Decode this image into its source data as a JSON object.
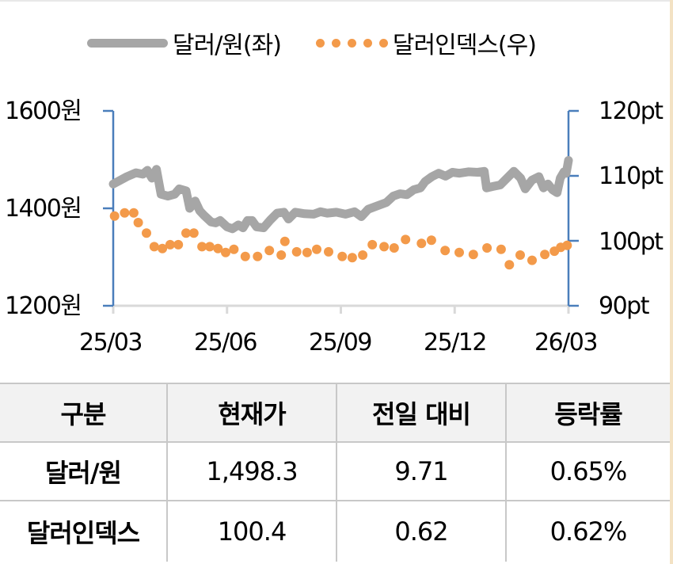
{
  "legend": {
    "series1": "달러/원(좌)",
    "series2": "달러인덱스(우)"
  },
  "axes": {
    "left": [
      "1600원",
      "1400원",
      "1200원"
    ],
    "right": [
      "120pt",
      "110pt",
      "100pt",
      "90pt"
    ],
    "x": [
      "25/03",
      "25/06",
      "25/09",
      "25/12",
      "26/03"
    ]
  },
  "colors": {
    "usdkrw": "#a6a6a6",
    "dxy": "#f39a4a",
    "axis": "#4a7ebb",
    "xaxis": "#d9d9d9"
  },
  "table": {
    "headers": [
      "구분",
      "현재가",
      "전일 대비",
      "등락률"
    ],
    "rows": [
      [
        "달러/원",
        "1,498.3",
        "9.71",
        "0.65%"
      ],
      [
        "달러인덱스",
        "100.4",
        "0.62",
        "0.62%"
      ]
    ]
  },
  "chart_data": {
    "type": "line",
    "title": "",
    "xlabel": "",
    "ylabel": "",
    "x_ticks": [
      "25/03",
      "25/06",
      "25/09",
      "25/12",
      "26/03"
    ],
    "legend_position": "top",
    "grid": false,
    "series": [
      {
        "name": "달러/원(좌)",
        "axis": "left",
        "style": "solid-line",
        "ylim": [
          1200,
          1600
        ],
        "unit": "원",
        "points": [
          [
            0.0,
            1450
          ],
          [
            0.03,
            1465
          ],
          [
            0.05,
            1473
          ],
          [
            0.065,
            1470
          ],
          [
            0.075,
            1478
          ],
          [
            0.085,
            1462
          ],
          [
            0.095,
            1480
          ],
          [
            0.105,
            1429
          ],
          [
            0.12,
            1425
          ],
          [
            0.135,
            1429
          ],
          [
            0.145,
            1440
          ],
          [
            0.16,
            1436
          ],
          [
            0.168,
            1400
          ],
          [
            0.18,
            1415
          ],
          [
            0.19,
            1395
          ],
          [
            0.2,
            1385
          ],
          [
            0.215,
            1372
          ],
          [
            0.225,
            1370
          ],
          [
            0.235,
            1375
          ],
          [
            0.25,
            1362
          ],
          [
            0.262,
            1358
          ],
          [
            0.275,
            1366
          ],
          [
            0.285,
            1360
          ],
          [
            0.295,
            1375
          ],
          [
            0.305,
            1375
          ],
          [
            0.315,
            1362
          ],
          [
            0.33,
            1360
          ],
          [
            0.345,
            1376
          ],
          [
            0.36,
            1390
          ],
          [
            0.375,
            1392
          ],
          [
            0.385,
            1378
          ],
          [
            0.4,
            1392
          ],
          [
            0.42,
            1389
          ],
          [
            0.44,
            1388
          ],
          [
            0.455,
            1393
          ],
          [
            0.47,
            1390
          ],
          [
            0.49,
            1392
          ],
          [
            0.51,
            1388
          ],
          [
            0.53,
            1393
          ],
          [
            0.545,
            1383
          ],
          [
            0.56,
            1398
          ],
          [
            0.58,
            1405
          ],
          [
            0.6,
            1412
          ],
          [
            0.615,
            1425
          ],
          [
            0.63,
            1430
          ],
          [
            0.645,
            1428
          ],
          [
            0.66,
            1438
          ],
          [
            0.675,
            1442
          ],
          [
            0.685,
            1455
          ],
          [
            0.7,
            1465
          ],
          [
            0.715,
            1472
          ],
          [
            0.73,
            1466
          ],
          [
            0.745,
            1474
          ],
          [
            0.76,
            1472
          ],
          [
            0.78,
            1475
          ],
          [
            0.8,
            1474
          ],
          [
            0.815,
            1476
          ],
          [
            0.82,
            1442
          ],
          [
            0.835,
            1445
          ],
          [
            0.85,
            1448
          ],
          [
            0.865,
            1462
          ],
          [
            0.88,
            1476
          ],
          [
            0.895,
            1462
          ],
          [
            0.905,
            1440
          ],
          [
            0.92,
            1458
          ],
          [
            0.935,
            1465
          ],
          [
            0.945,
            1442
          ],
          [
            0.955,
            1450
          ],
          [
            0.965,
            1438
          ],
          [
            0.975,
            1432
          ],
          [
            0.982,
            1462
          ],
          [
            0.99,
            1475
          ],
          [
            0.995,
            1472
          ],
          [
            1.0,
            1498.3
          ]
        ]
      },
      {
        "name": "달러인덱스(우)",
        "axis": "right",
        "style": "dots",
        "ylim": [
          90,
          120
        ],
        "unit": "pt",
        "points": [
          [
            0.003,
            103.8
          ],
          [
            0.025,
            104.3
          ],
          [
            0.045,
            104.3
          ],
          [
            0.055,
            102.8
          ],
          [
            0.073,
            101.2
          ],
          [
            0.09,
            99.1
          ],
          [
            0.108,
            98.8
          ],
          [
            0.125,
            99.4
          ],
          [
            0.143,
            99.4
          ],
          [
            0.16,
            101.2
          ],
          [
            0.177,
            101.2
          ],
          [
            0.195,
            99.1
          ],
          [
            0.212,
            99.1
          ],
          [
            0.23,
            98.8
          ],
          [
            0.247,
            98.2
          ],
          [
            0.265,
            98.7
          ],
          [
            0.29,
            97.6
          ],
          [
            0.317,
            97.6
          ],
          [
            0.343,
            98.5
          ],
          [
            0.369,
            97.8
          ],
          [
            0.377,
            99.9
          ],
          [
            0.403,
            98.3
          ],
          [
            0.426,
            98.2
          ],
          [
            0.447,
            98.7
          ],
          [
            0.473,
            98.3
          ],
          [
            0.503,
            97.6
          ],
          [
            0.525,
            97.4
          ],
          [
            0.548,
            97.8
          ],
          [
            0.569,
            99.4
          ],
          [
            0.595,
            99.1
          ],
          [
            0.617,
            98.9
          ],
          [
            0.642,
            100.2
          ],
          [
            0.677,
            99.6
          ],
          [
            0.699,
            100.1
          ],
          [
            0.729,
            98.5
          ],
          [
            0.76,
            98.2
          ],
          [
            0.791,
            97.9
          ],
          [
            0.821,
            98.9
          ],
          [
            0.852,
            98.7
          ],
          [
            0.87,
            96.3
          ],
          [
            0.894,
            97.8
          ],
          [
            0.92,
            97.0
          ],
          [
            0.948,
            97.9
          ],
          [
            0.969,
            98.4
          ],
          [
            0.983,
            99.0
          ],
          [
            0.997,
            99.3
          ]
        ]
      }
    ],
    "y_left": {
      "ticks": [
        1200,
        1400,
        1600
      ],
      "labels": [
        "1200원",
        "1400원",
        "1600원"
      ],
      "range": [
        1200,
        1600
      ]
    },
    "y_right": {
      "ticks": [
        90,
        100,
        110,
        120
      ],
      "labels": [
        "90pt",
        "100pt",
        "110pt",
        "120pt"
      ],
      "range": [
        90,
        120
      ]
    }
  }
}
